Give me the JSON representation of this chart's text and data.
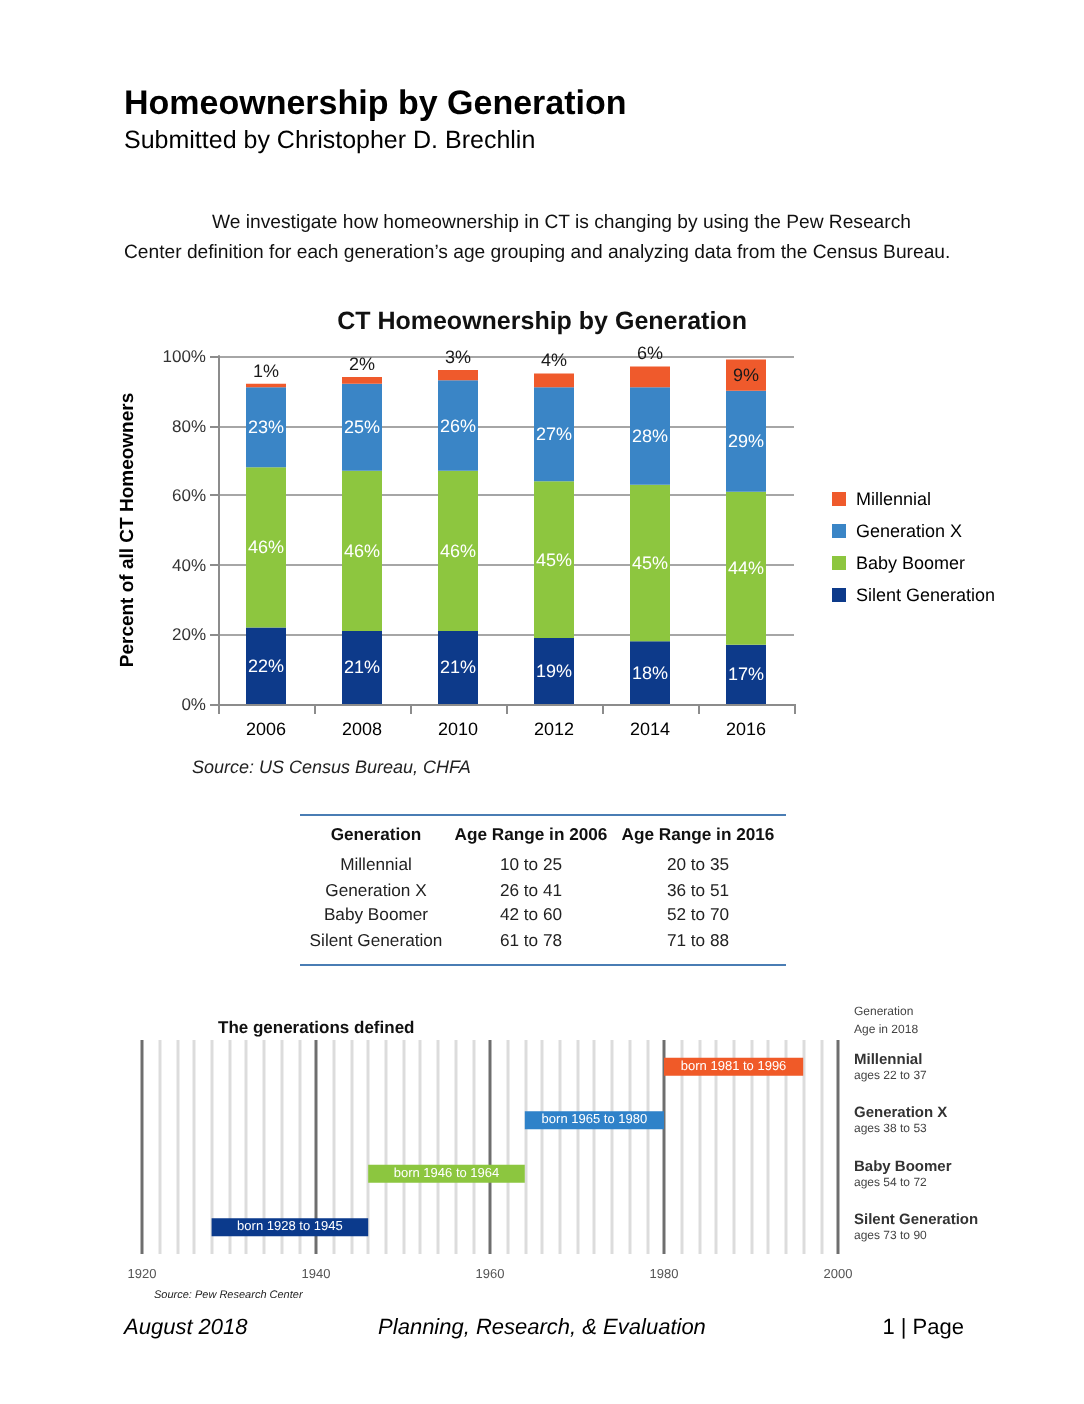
{
  "chart_data": [
    {
      "type": "other",
      "title": "Homeownership by Generation",
      "subtitle": "Submitted by Christopher D. Brechlin",
      "annotations": [
        "We investigate how homeownership in CT is changing by using the Pew Research Center definition for each generation’s age grouping and analyzing data from the Census Bureau."
      ]
    },
    {
      "type": "bar",
      "stacked": true,
      "title": "CT Homeownership by Generation",
      "ylabel": "Percent of all CT Homeowners",
      "categories": [
        "2006",
        "2008",
        "2010",
        "2012",
        "2014",
        "2016"
      ],
      "series": [
        {
          "name": "Silent Generation",
          "color": "#0d3a8a",
          "values": [
            22,
            21,
            21,
            19,
            18,
            17
          ],
          "value_labels": [
            "22%",
            "21%",
            "21%",
            "19%",
            "18%",
            "17%"
          ]
        },
        {
          "name": "Baby Boomer",
          "color": "#8dc63f",
          "values": [
            46,
            46,
            46,
            45,
            45,
            44
          ],
          "value_labels": [
            "46%",
            "46%",
            "46%",
            "45%",
            "45%",
            "44%"
          ]
        },
        {
          "name": "Generation X",
          "color": "#3a85c6",
          "values": [
            23,
            25,
            26,
            27,
            28,
            29
          ],
          "value_labels": [
            "23%",
            "25%",
            "26%",
            "27%",
            "28%",
            "29%"
          ]
        },
        {
          "name": "Millennial",
          "color": "#ef5a2c",
          "values": [
            1,
            2,
            3,
            4,
            6,
            9
          ],
          "value_labels": [
            "1%",
            "2%",
            "3%",
            "4%",
            "6%",
            "9%"
          ]
        }
      ],
      "ylim": [
        0,
        100
      ],
      "yticks": [
        {
          "value": 0,
          "label": "0%"
        },
        {
          "value": 20,
          "label": "20%"
        },
        {
          "value": 40,
          "label": "40%"
        },
        {
          "value": 60,
          "label": "60%"
        },
        {
          "value": 80,
          "label": "80%"
        },
        {
          "value": 100,
          "label": "100%"
        }
      ],
      "grid": "y",
      "legend": "right",
      "annotations": [
        "Source: US Census Bureau, CHFA"
      ]
    },
    {
      "type": "other",
      "annotations": [
        "Generation",
        "Age Range in 2006",
        "Age Range in 2016",
        "Millennial",
        "10 to 25",
        "20 to 35",
        "Generation X",
        "26 to 41",
        "36 to 51",
        "Baby Boomer",
        "42 to 60",
        "52 to 70",
        "Silent Generation",
        "61 to 78",
        "71 to 88"
      ]
    },
    {
      "type": "bar",
      "orientation": "horizontal",
      "title": "The generations defined",
      "ylabel": "Generation\nAge in 2018",
      "categories": [
        "Millennial\nages 22 to 37",
        "Generation X\nages 38 to 53",
        "Baby Boomer\nages 54 to 72",
        "Silent Generation\nages 73 to 90"
      ],
      "values": [
        16,
        16,
        18,
        18
      ],
      "base": [
        1980,
        1964,
        1946,
        1928
      ],
      "colors": [
        "#f05a28",
        "#2f82c9",
        "#8cc63f",
        "#0b3a8c"
      ],
      "value_labels": [
        "born 1981 to 1996",
        "born 1965 to 1980",
        "born 1946 to 1964",
        "born 1928 to 1945"
      ],
      "xlim": [
        1920,
        2000
      ],
      "xticks": [
        1920,
        {
          "value": 1922,
          "label": null
        },
        {
          "value": 1924,
          "label": null
        },
        {
          "value": 1926,
          "label": null
        },
        {
          "value": 1928,
          "label": null
        },
        {
          "value": 1930,
          "label": null
        },
        {
          "value": 1932,
          "label": null
        },
        {
          "value": 1934,
          "label": null
        },
        {
          "value": 1936,
          "label": null
        },
        {
          "value": 1938,
          "label": null
        },
        1940,
        {
          "value": 1942,
          "label": null
        },
        {
          "value": 1944,
          "label": null
        },
        {
          "value": 1946,
          "label": null
        },
        {
          "value": 1948,
          "label": null
        },
        {
          "value": 1950,
          "label": null
        },
        {
          "value": 1952,
          "label": null
        },
        {
          "value": 1954,
          "label": null
        },
        {
          "value": 1956,
          "label": null
        },
        {
          "value": 1958,
          "label": null
        },
        1960,
        {
          "value": 1962,
          "label": null
        },
        {
          "value": 1964,
          "label": null
        },
        {
          "value": 1966,
          "label": null
        },
        {
          "value": 1968,
          "label": null
        },
        {
          "value": 1970,
          "label": null
        },
        {
          "value": 1972,
          "label": null
        },
        {
          "value": 1974,
          "label": null
        },
        {
          "value": 1976,
          "label": null
        },
        {
          "value": 1978,
          "label": null
        },
        1980,
        {
          "value": 1982,
          "label": null
        },
        {
          "value": 1984,
          "label": null
        },
        {
          "value": 1986,
          "label": null
        },
        {
          "value": 1988,
          "label": null
        },
        {
          "value": 1990,
          "label": null
        },
        {
          "value": 1992,
          "label": null
        },
        {
          "value": 1994,
          "label": null
        },
        {
          "value": 1996,
          "label": null
        },
        {
          "value": 1998,
          "label": null
        },
        2000
      ],
      "grid": "x",
      "annotations": [
        "Source: Pew Research Center"
      ]
    },
    {
      "type": "other",
      "annotations": [
        "August 2018",
        "Planning, Research, & Evaluation",
        "1 | Page"
      ]
    }
  ]
}
